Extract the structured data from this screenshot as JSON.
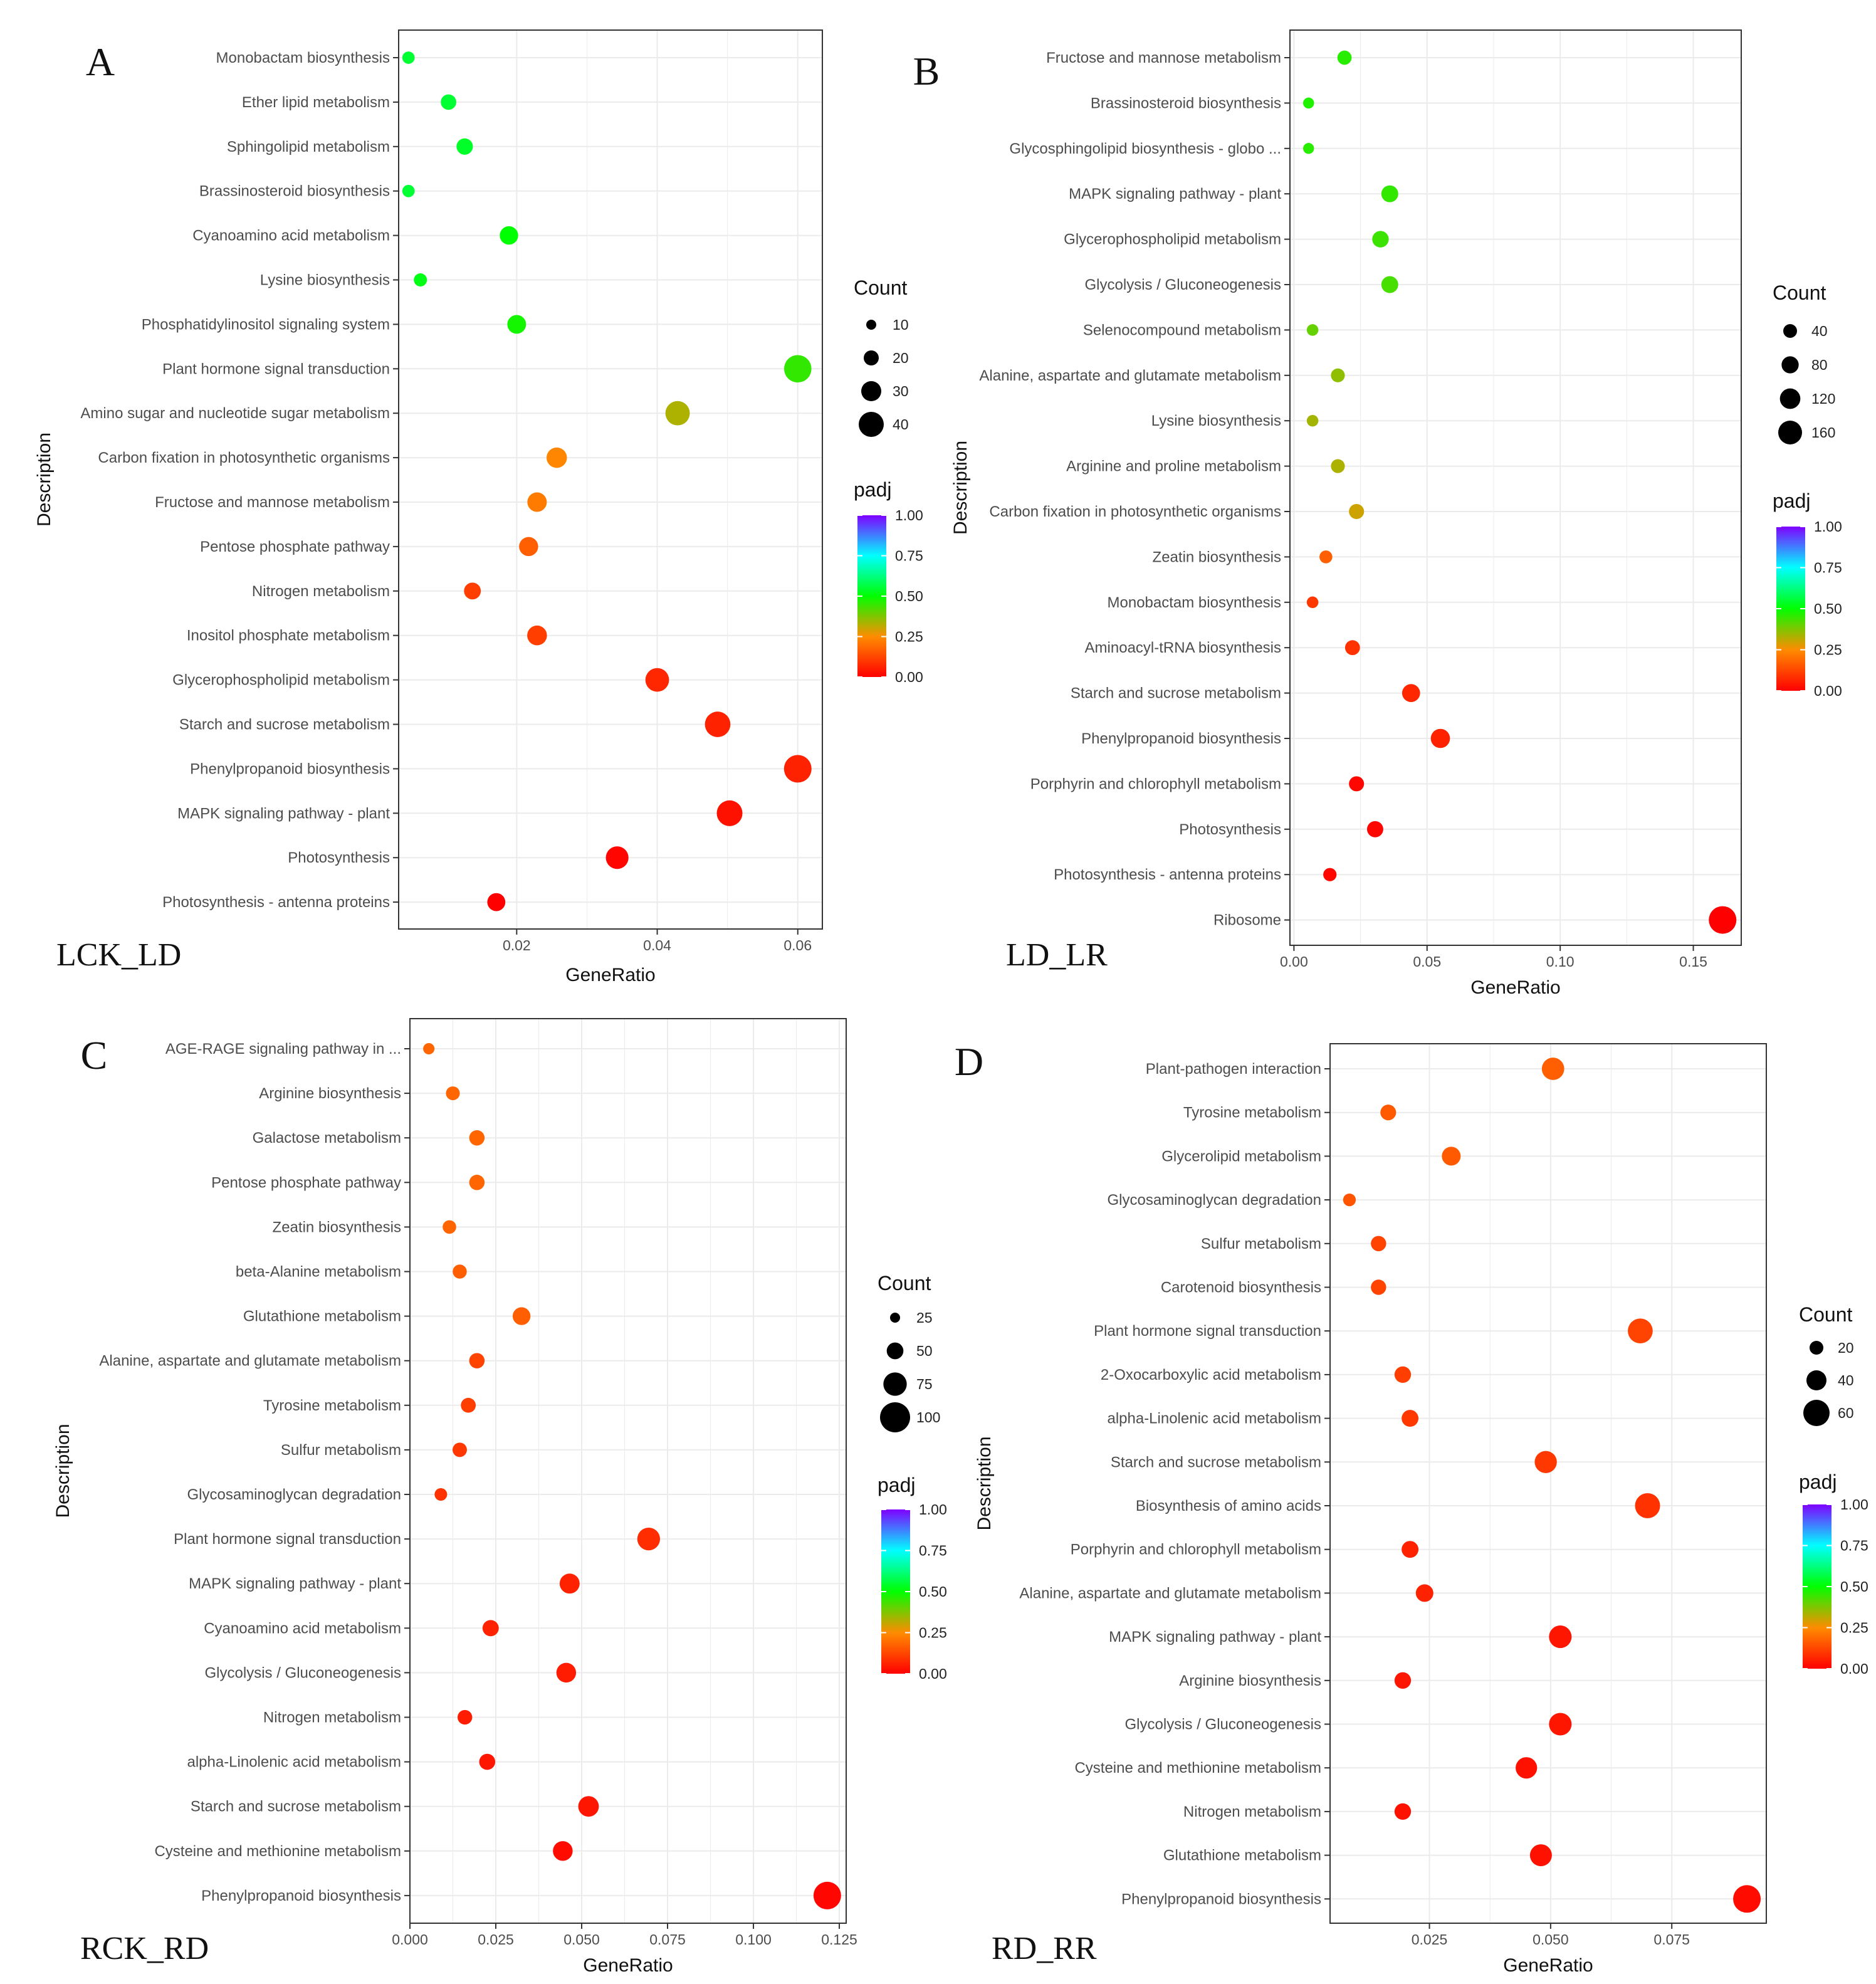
{
  "legend": {
    "count_title": "Count",
    "color_title": "padj",
    "color_ticks": [
      "1.00",
      "0.75",
      "0.50",
      "0.25",
      "0.00"
    ]
  },
  "colors": {
    "gradient": [
      "#ff0000",
      "#ff8c00",
      "#00ff00",
      "#00ffff",
      "#7f00ff"
    ],
    "grid": "#ebebeb",
    "frame": "#333333"
  },
  "chart_data": [
    {
      "type": "scatter",
      "panel_letter": "A",
      "panel_name": "LCK_LD",
      "xlabel": "GeneRatio",
      "ylabel": "Description",
      "xlim": [
        0.0032,
        0.0635
      ],
      "xticks": [
        0.02,
        0.04,
        0.06
      ],
      "xtick_labels": [
        "0.02",
        "0.04",
        "0.06"
      ],
      "size_legend": [
        10,
        20,
        30,
        40
      ],
      "size_labels": [
        "10",
        "20",
        "30",
        "40"
      ],
      "categories": [
        "Monobactam biosynthesis",
        "Ether lipid metabolism",
        "Sphingolipid metabolism",
        "Brassinosteroid biosynthesis",
        "Cyanoamino acid metabolism",
        "Lysine biosynthesis",
        "Phosphatidylinositol signaling system",
        "Plant hormone signal transduction",
        "Amino sugar and nucleotide sugar metabolism",
        "Carbon fixation in photosynthetic organisms",
        "Fructose and mannose metabolism",
        "Pentose phosphate pathway",
        "Nitrogen metabolism",
        "Inositol phosphate metabolism",
        "Glycerophospholipid metabolism",
        "Starch and sucrose metabolism",
        "Phenylpropanoid biosynthesis",
        "MAPK signaling pathway - plant",
        "Photosynthesis",
        "Photosynthesis - antenna proteins"
      ],
      "gene_ratio": [
        0.0046,
        0.0103,
        0.0126,
        0.0046,
        0.0189,
        0.0063,
        0.02,
        0.06,
        0.0429,
        0.0257,
        0.0229,
        0.0217,
        0.0137,
        0.0229,
        0.04,
        0.0486,
        0.06,
        0.0503,
        0.0343,
        0.0171
      ],
      "count": [
        4,
        9,
        11,
        4,
        16,
        5,
        17,
        51,
        37,
        22,
        19,
        18,
        12,
        20,
        34,
        42,
        52,
        43,
        30,
        15
      ],
      "padj": [
        0.55,
        0.55,
        0.54,
        0.55,
        0.5,
        0.52,
        0.48,
        0.45,
        0.33,
        0.24,
        0.22,
        0.17,
        0.11,
        0.11,
        0.07,
        0.06,
        0.06,
        0.03,
        0.01,
        0.0
      ]
    },
    {
      "type": "scatter",
      "panel_letter": "B",
      "panel_name": "LD_LR",
      "xlabel": "GeneRatio",
      "ylabel": "Description",
      "xlim": [
        -0.0015,
        0.168
      ],
      "xticks": [
        0.0,
        0.05,
        0.1,
        0.15
      ],
      "xtick_labels": [
        "0.00",
        "0.05",
        "0.10",
        "0.15"
      ],
      "size_legend": [
        40,
        80,
        120,
        160
      ],
      "size_labels": [
        "40",
        "80",
        "120",
        "160"
      ],
      "categories": [
        "Fructose and mannose metabolism",
        "Brassinosteroid biosynthesis",
        "Glycosphingolipid biosynthesis - globo ...",
        "MAPK signaling pathway - plant",
        "Glycerophospholipid metabolism",
        "Glycolysis / Gluconeogenesis",
        "Selenocompound metabolism",
        "Alanine, aspartate and glutamate metabolism",
        "Lysine biosynthesis",
        "Arginine and proline metabolism",
        "Carbon fixation in photosynthetic organisms",
        "Zeatin biosynthesis",
        "Monobactam biosynthesis",
        "Aminoacyl-tRNA biosynthesis",
        "Starch and sucrose metabolism",
        "Phenylpropanoid biosynthesis",
        "Porphyrin and chlorophyll metabolism",
        "Photosynthesis",
        "Photosynthesis - antenna proteins",
        "Ribosome"
      ],
      "gene_ratio": [
        0.019,
        0.0055,
        0.0055,
        0.036,
        0.0325,
        0.036,
        0.007,
        0.0165,
        0.007,
        0.0165,
        0.0235,
        0.012,
        0.007,
        0.022,
        0.044,
        0.055,
        0.0235,
        0.0305,
        0.0135,
        0.161
      ],
      "count": [
        20,
        6,
        6,
        38,
        35,
        38,
        8,
        18,
        8,
        18,
        25,
        13,
        8,
        24,
        47,
        58,
        25,
        33,
        15,
        170
      ],
      "padj": [
        0.46,
        0.47,
        0.46,
        0.45,
        0.44,
        0.43,
        0.4,
        0.36,
        0.34,
        0.33,
        0.3,
        0.17,
        0.1,
        0.09,
        0.07,
        0.06,
        0.01,
        0.01,
        0.01,
        0.0
      ]
    },
    {
      "type": "scatter",
      "panel_letter": "C",
      "panel_name": "RCK_RD",
      "xlabel": "GeneRatio",
      "ylabel": "Description",
      "xlim": [
        0.0,
        0.127
      ],
      "xticks": [
        0.0,
        0.025,
        0.05,
        0.075,
        0.1,
        0.125
      ],
      "xtick_labels": [
        "0.000",
        "0.025",
        "0.050",
        "0.075",
        "0.100",
        "0.125"
      ],
      "size_legend": [
        25,
        50,
        75,
        100
      ],
      "size_labels": [
        "25",
        "50",
        "75",
        "100"
      ],
      "categories": [
        "AGE-RAGE signaling pathway in ...",
        "Arginine biosynthesis",
        "Galactose metabolism",
        "Pentose phosphate pathway",
        "Zeatin biosynthesis",
        "beta-Alanine metabolism",
        "Glutathione metabolism",
        "Alanine, aspartate and glutamate metabolism",
        "Tyrosine metabolism",
        "Sulfur metabolism",
        "Glycosaminoglycan degradation",
        "Plant hormone signal transduction",
        "MAPK signaling pathway - plant",
        "Cyanoamino acid metabolism",
        "Glycolysis / Gluconeogenesis",
        "Nitrogen metabolism",
        "alpha-Linolenic acid metabolism",
        "Starch and sucrose metabolism",
        "Cysteine and methionine metabolism",
        "Phenylpropanoid biosynthesis"
      ],
      "gene_ratio": [
        0.0055,
        0.0125,
        0.0195,
        0.0195,
        0.0115,
        0.0145,
        0.0325,
        0.0195,
        0.017,
        0.0145,
        0.009,
        0.0695,
        0.0465,
        0.0235,
        0.0455,
        0.016,
        0.0225,
        0.052,
        0.0445,
        0.1215
      ],
      "count": [
        5,
        12,
        18,
        18,
        11,
        13,
        30,
        18,
        16,
        14,
        8,
        65,
        44,
        22,
        42,
        15,
        21,
        48,
        42,
        112
      ],
      "padj": [
        0.18,
        0.18,
        0.18,
        0.18,
        0.18,
        0.17,
        0.17,
        0.12,
        0.11,
        0.1,
        0.09,
        0.08,
        0.06,
        0.06,
        0.05,
        0.05,
        0.04,
        0.04,
        0.02,
        0.01
      ]
    },
    {
      "type": "scatter",
      "panel_letter": "D",
      "panel_name": "RD_RR",
      "xlabel": "GeneRatio",
      "ylabel": "Description",
      "xlim": [
        0.0045,
        0.0945
      ],
      "xticks": [
        0.025,
        0.05,
        0.075
      ],
      "xtick_labels": [
        "0.025",
        "0.050",
        "0.075"
      ],
      "size_legend": [
        20,
        40,
        60
      ],
      "size_labels": [
        "20",
        "40",
        "60"
      ],
      "categories": [
        "Plant-pathogen interaction",
        "Tyrosine metabolism",
        "Glycerolipid metabolism",
        "Glycosaminoglycan degradation",
        "Sulfur metabolism",
        "Carotenoid biosynthesis",
        "Plant hormone signal transduction",
        "2-Oxocarboxylic acid metabolism",
        "alpha-Linolenic acid metabolism",
        "Starch and sucrose metabolism",
        "Biosynthesis of amino acids",
        "Porphyrin and chlorophyll metabolism",
        "Alanine, aspartate and glutamate metabolism",
        "MAPK signaling pathway - plant",
        "Arginine biosynthesis",
        "Glycolysis / Gluconeogenesis",
        "Cysteine and methionine metabolism",
        "Nitrogen metabolism",
        "Glutathione metabolism",
        "Phenylpropanoid biosynthesis"
      ],
      "gene_ratio": [
        0.0505,
        0.0165,
        0.0295,
        0.0085,
        0.0145,
        0.0145,
        0.0685,
        0.0195,
        0.021,
        0.049,
        0.07,
        0.021,
        0.024,
        0.052,
        0.0195,
        0.052,
        0.045,
        0.0195,
        0.048,
        0.0905
      ],
      "count": [
        34,
        11,
        20,
        5,
        10,
        10,
        46,
        13,
        14,
        33,
        47,
        14,
        16,
        35,
        13,
        35,
        30,
        13,
        32,
        61
      ],
      "padj": [
        0.17,
        0.16,
        0.16,
        0.15,
        0.12,
        0.12,
        0.12,
        0.11,
        0.1,
        0.1,
        0.09,
        0.06,
        0.06,
        0.04,
        0.04,
        0.04,
        0.03,
        0.03,
        0.03,
        0.02
      ]
    }
  ]
}
